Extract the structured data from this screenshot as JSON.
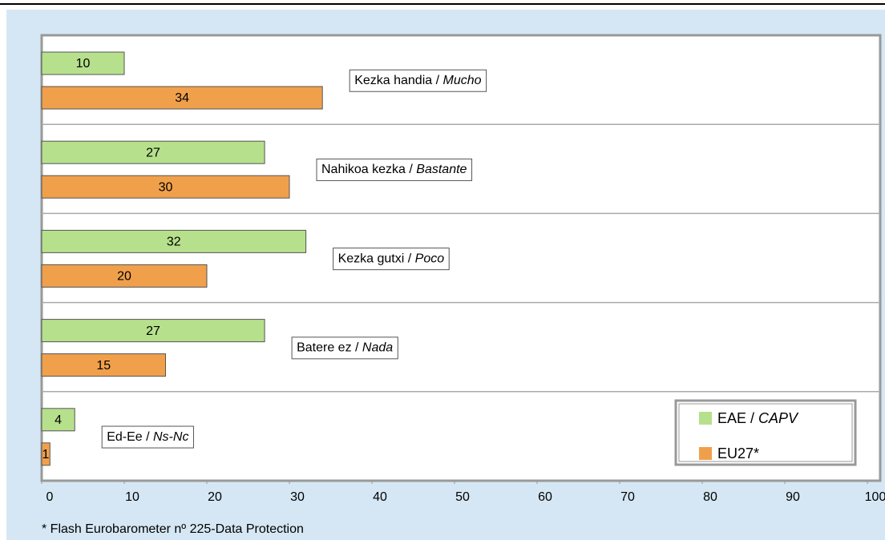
{
  "chart_data": {
    "type": "barh",
    "categories": [
      "Kezka handia / Mucho",
      "Nahikoa kezka / Bastante",
      "Kezka gutxi / Poco",
      "Batere ez / Nada",
      "Ed-Ee / Ns-Nc"
    ],
    "series": [
      {
        "name": "EAE / CAPV",
        "color": "#b6e08c",
        "values": [
          10,
          27,
          32,
          27,
          4
        ]
      },
      {
        "name": "EU27*",
        "color": "#f0a04b",
        "values": [
          34,
          30,
          20,
          15,
          1
        ]
      }
    ],
    "xlim": [
      0,
      100
    ],
    "xticks": [
      0,
      10,
      20,
      30,
      40,
      50,
      60,
      70,
      80,
      90,
      100
    ],
    "legend": "lower right",
    "footnote": "* Flash Eurobarometer nº 225-Data Protection"
  }
}
